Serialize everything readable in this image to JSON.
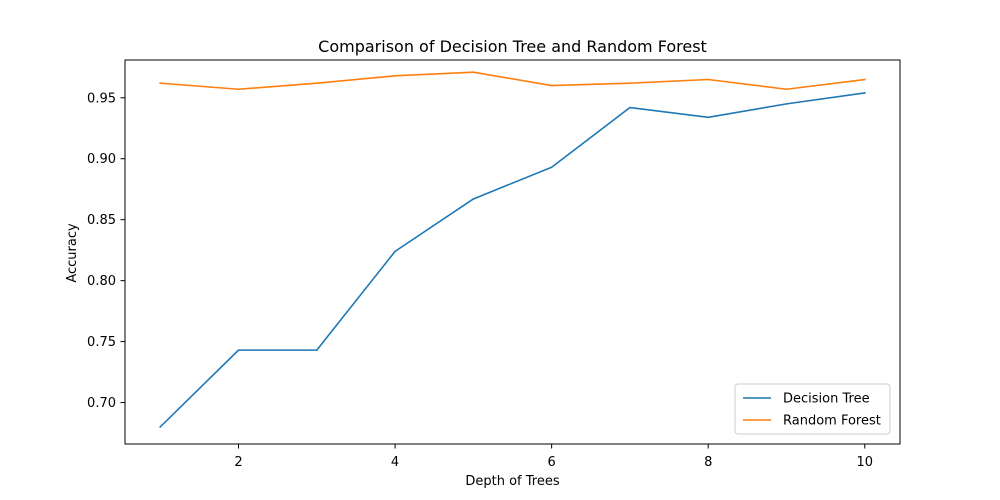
{
  "chart_data": {
    "type": "line",
    "title": "Comparison of Decision Tree and Random Forest",
    "xlabel": "Depth of Trees",
    "ylabel": "Accuracy",
    "x": [
      1,
      2,
      3,
      4,
      5,
      6,
      7,
      8,
      9,
      10
    ],
    "xlim": [
      0.55,
      10.45
    ],
    "ylim": [
      0.666,
      0.981
    ],
    "xticks": [
      2,
      4,
      6,
      8,
      10
    ],
    "xtick_labels": [
      "2",
      "4",
      "6",
      "8",
      "10"
    ],
    "yticks": [
      0.7,
      0.75,
      0.8,
      0.85,
      0.9,
      0.95
    ],
    "ytick_labels": [
      "0.70",
      "0.75",
      "0.80",
      "0.85",
      "0.90",
      "0.95"
    ],
    "grid": false,
    "legend_position": "lower-right",
    "series": [
      {
        "name": "Decision Tree",
        "color": "#1f77b4",
        "values": [
          0.68,
          0.743,
          0.743,
          0.824,
          0.867,
          0.893,
          0.942,
          0.934,
          0.945,
          0.954
        ]
      },
      {
        "name": "Random Forest",
        "color": "#ff7f0e",
        "values": [
          0.962,
          0.957,
          0.962,
          0.968,
          0.971,
          0.96,
          0.962,
          0.965,
          0.957,
          0.965
        ]
      }
    ]
  }
}
